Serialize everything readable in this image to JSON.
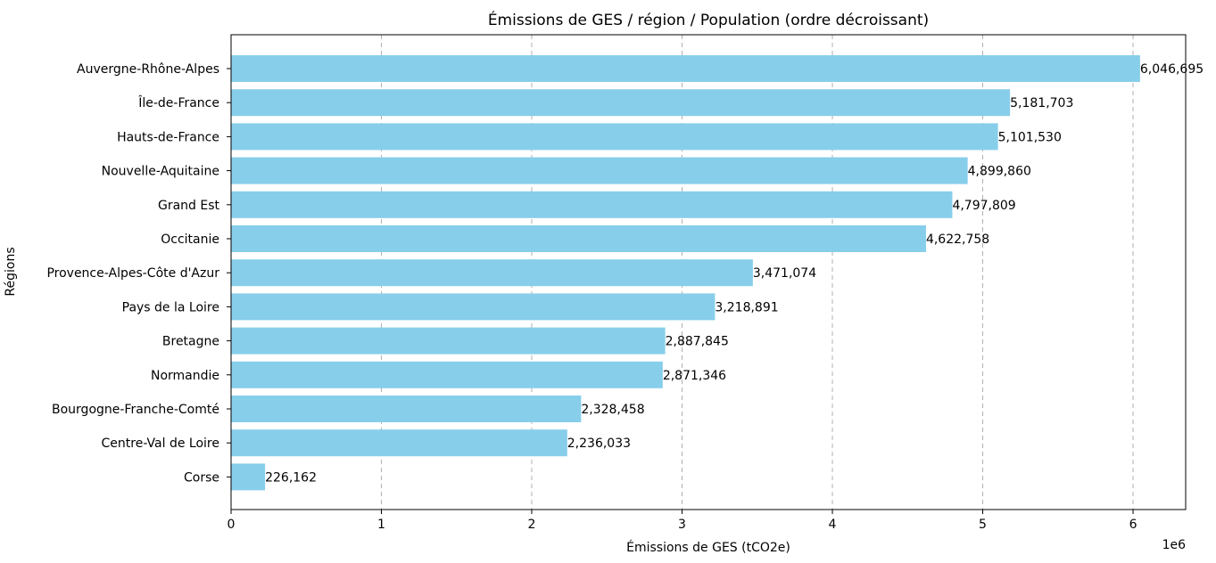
{
  "chart_data": {
    "type": "bar",
    "orientation": "horizontal",
    "title": "Émissions de GES / région / Population (ordre décroissant)",
    "xlabel": "Émissions de GES (tCO2e)",
    "ylabel": "Régions",
    "x_offset_label": "1e6",
    "xlim": [
      0,
      6350000
    ],
    "x_ticks": [
      0,
      1000000,
      2000000,
      3000000,
      4000000,
      5000000,
      6000000
    ],
    "x_tick_labels": [
      "0",
      "1",
      "2",
      "3",
      "4",
      "5",
      "6"
    ],
    "grid": "x-dashed",
    "bar_color": "#87CEEB",
    "categories": [
      "Auvergne-Rhône-Alpes",
      "Île-de-France",
      "Hauts-de-France",
      "Nouvelle-Aquitaine",
      "Grand Est",
      "Occitanie",
      "Provence-Alpes-Côte d'Azur",
      "Pays de la Loire",
      "Bretagne",
      "Normandie",
      "Bourgogne-Franche-Comté",
      "Centre-Val de Loire",
      "Corse"
    ],
    "values": [
      6046695,
      5181703,
      5101530,
      4899860,
      4797809,
      4622758,
      3471074,
      3218891,
      2887845,
      2871346,
      2328458,
      2236033,
      226162
    ],
    "value_labels": [
      "6,046,695",
      "5,181,703",
      "5,101,530",
      "4,899,860",
      "4,797,809",
      "4,622,758",
      "3,471,074",
      "3,218,891",
      "2,887,845",
      "2,871,346",
      "2,328,458",
      "2,236,033",
      "226,162"
    ]
  }
}
